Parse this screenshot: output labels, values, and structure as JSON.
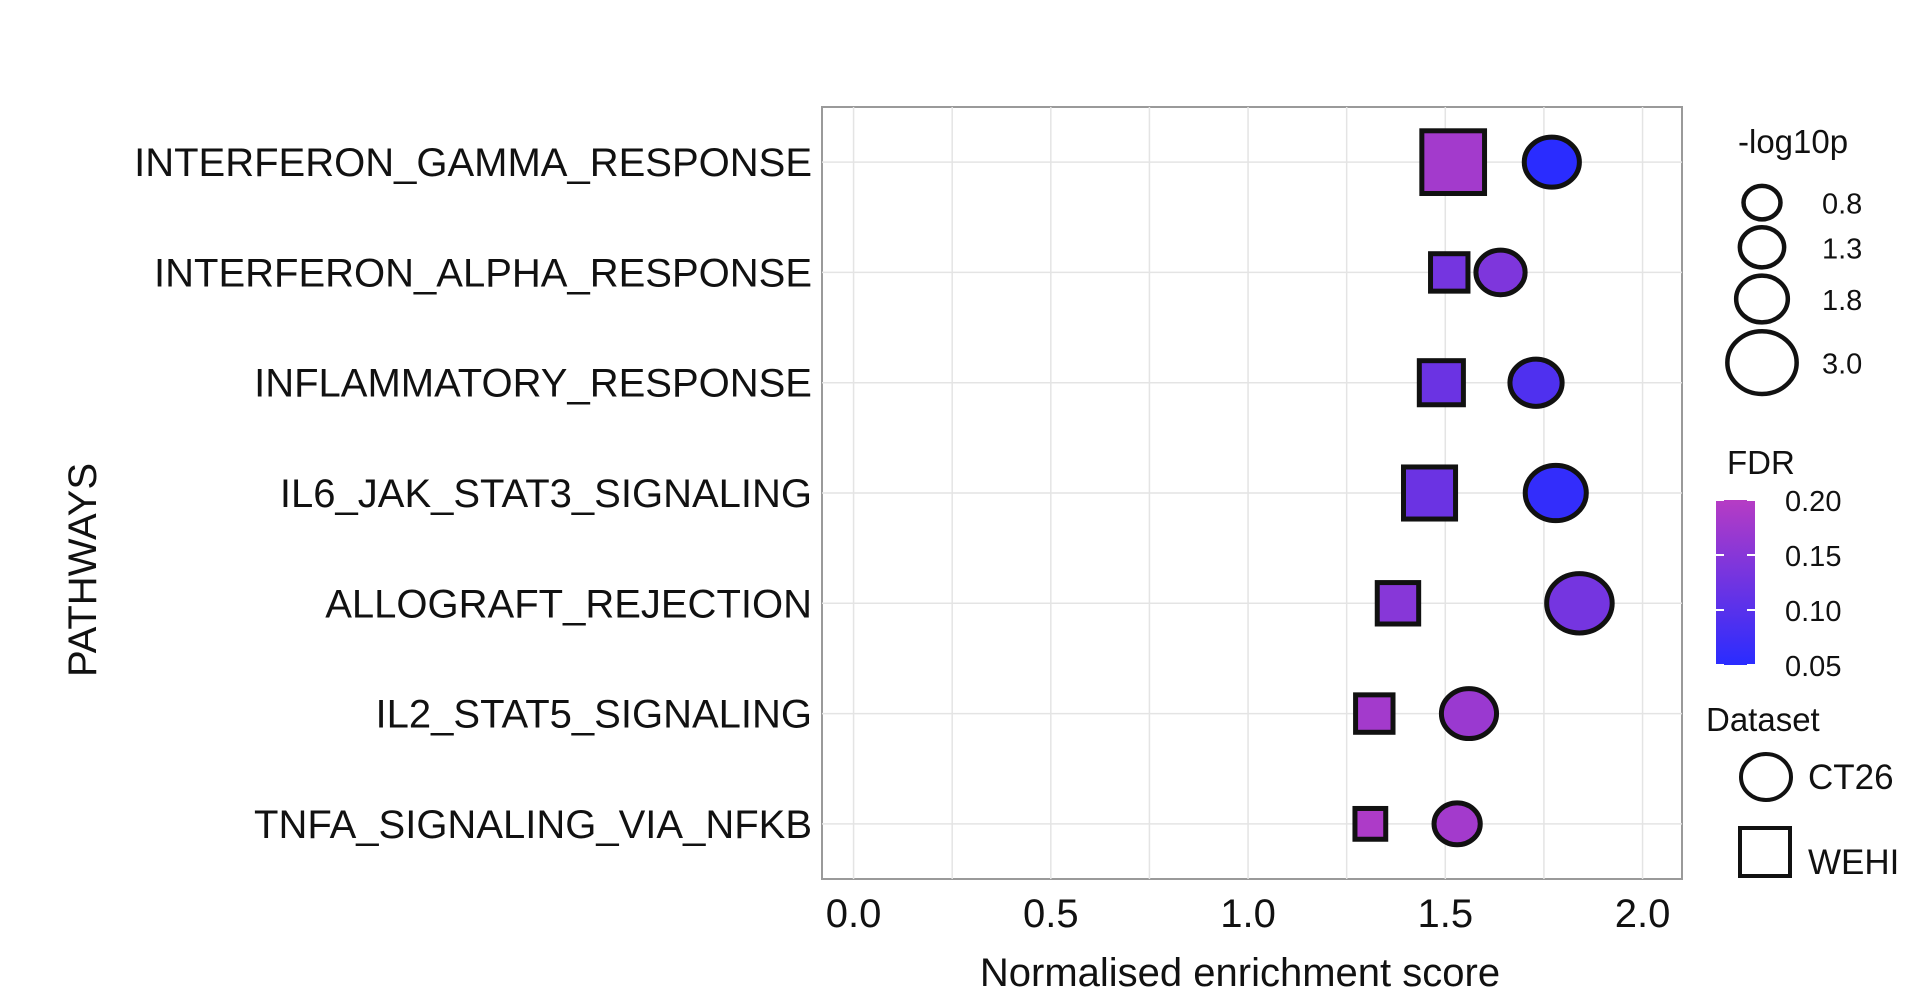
{
  "chart_data": {
    "type": "scatter",
    "title": "",
    "xlabel": "Normalised enrichment score",
    "ylabel": "PATHWAYS",
    "xlim": [
      -0.08,
      2.1
    ],
    "xticks": [
      0.0,
      0.5,
      1.0,
      1.5,
      2.0
    ],
    "xtick_labels": [
      "0.0",
      "0.5",
      "1.0",
      "1.5",
      "2.0"
    ],
    "grid": true,
    "categories": [
      "INTERFERON_GAMMA_RESPONSE",
      "INTERFERON_ALPHA_RESPONSE",
      "INFLAMMATORY_RESPONSE",
      "IL6_JAK_STAT3_SIGNALING",
      "ALLOGRAFT_REJECTION",
      "IL2_STAT5_SIGNALING",
      "TNFA_SIGNALING_VIA_NFKB"
    ],
    "series": [
      {
        "name": "CT26",
        "shape": "circle",
        "points": [
          {
            "category": "INTERFERON_GAMMA_RESPONSE",
            "nes": 1.77,
            "neg_log10p": 2.0,
            "fdr": 0.05
          },
          {
            "category": "INTERFERON_ALPHA_RESPONSE",
            "nes": 1.64,
            "neg_log10p": 1.6,
            "fdr": 0.14
          },
          {
            "category": "INFLAMMATORY_RESPONSE",
            "nes": 1.73,
            "neg_log10p": 1.8,
            "fdr": 0.09
          },
          {
            "category": "IL6_JAK_STAT3_SIGNALING",
            "nes": 1.78,
            "neg_log10p": 2.4,
            "fdr": 0.06
          },
          {
            "category": "ALLOGRAFT_REJECTION",
            "nes": 1.84,
            "neg_log10p": 2.7,
            "fdr": 0.13
          },
          {
            "category": "IL2_STAT5_SIGNALING",
            "nes": 1.56,
            "neg_log10p": 2.0,
            "fdr": 0.17
          },
          {
            "category": "TNFA_SIGNALING_VIA_NFKB",
            "nes": 1.53,
            "neg_log10p": 1.4,
            "fdr": 0.18
          }
        ]
      },
      {
        "name": "WEHI",
        "shape": "square",
        "points": [
          {
            "category": "INTERFERON_GAMMA_RESPONSE",
            "nes": 1.52,
            "neg_log10p": 3.0,
            "fdr": 0.18
          },
          {
            "category": "INTERFERON_ALPHA_RESPONSE",
            "nes": 1.51,
            "neg_log10p": 1.1,
            "fdr": 0.13
          },
          {
            "category": "INFLAMMATORY_RESPONSE",
            "nes": 1.49,
            "neg_log10p": 1.6,
            "fdr": 0.12
          },
          {
            "category": "IL6_JAK_STAT3_SIGNALING",
            "nes": 1.46,
            "neg_log10p": 2.2,
            "fdr": 0.12
          },
          {
            "category": "ALLOGRAFT_REJECTION",
            "nes": 1.38,
            "neg_log10p": 1.4,
            "fdr": 0.15
          },
          {
            "category": "IL2_STAT5_SIGNALING",
            "nes": 1.32,
            "neg_log10p": 1.1,
            "fdr": 0.18
          },
          {
            "category": "TNFA_SIGNALING_VIA_NFKB",
            "nes": 1.31,
            "neg_log10p": 0.6,
            "fdr": 0.19
          }
        ]
      }
    ],
    "legend": {
      "placement": "right",
      "size": {
        "title": "-log10p",
        "values": [
          0.8,
          1.3,
          1.8,
          3.0
        ],
        "labels": [
          "0.8",
          "1.3",
          "1.8",
          "3.0"
        ]
      },
      "color": {
        "title": "FDR",
        "range": [
          0.05,
          0.2
        ],
        "low_color": "#2a2cff",
        "high_color": "#b63cc4",
        "ticks": [
          0.2,
          0.15,
          0.1,
          0.05
        ],
        "labels": [
          "0.20",
          "0.15",
          "0.10",
          "0.05"
        ]
      },
      "shape": {
        "title": "Dataset",
        "entries": [
          {
            "label": "CT26",
            "shape": "circle"
          },
          {
            "label": "WEHI",
            "shape": "square"
          }
        ]
      }
    }
  }
}
